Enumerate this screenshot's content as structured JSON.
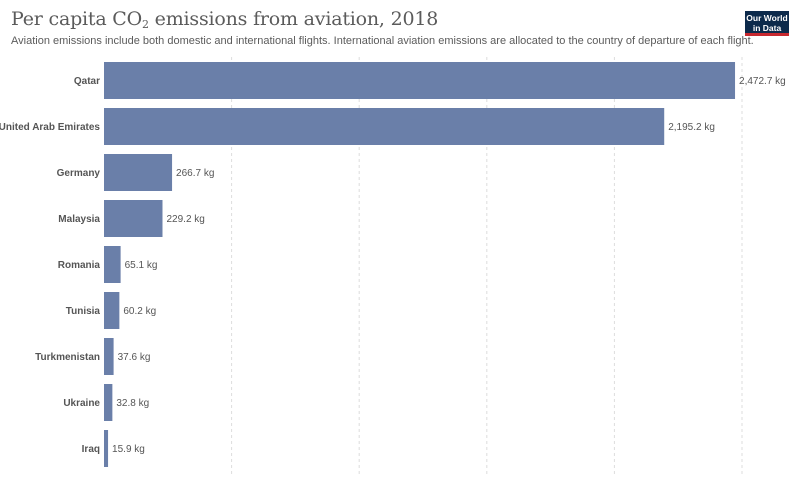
{
  "header": {
    "title_prefix": "Per capita CO",
    "title_sub": "2",
    "title_suffix": " emissions from aviation, 2018",
    "subtitle": "Aviation emissions include both domestic and international flights. International aviation emissions are allocated to the country of departure of each flight."
  },
  "logo": {
    "line1": "Our World",
    "line2": "in Data"
  },
  "colors": {
    "bar": "#6a7fa9",
    "logo_bg": "#0c2a4b",
    "logo_accent": "#c7282f"
  },
  "chart_data": {
    "type": "bar",
    "orientation": "horizontal",
    "categories": [
      "Qatar",
      "United Arab Emirates",
      "Germany",
      "Malaysia",
      "Romania",
      "Tunisia",
      "Turkmenistan",
      "Ukraine",
      "Iraq"
    ],
    "values": [
      2472.7,
      2195.2,
      266.7,
      229.2,
      65.1,
      60.2,
      37.6,
      32.8,
      15.9
    ],
    "value_labels": [
      "2,472.7 kg",
      "2,195.2 kg",
      "266.7 kg",
      "229.2 kg",
      "65.1 kg",
      "60.2 kg",
      "37.6 kg",
      "32.8 kg",
      "15.9 kg"
    ],
    "unit": "kg",
    "xlim": [
      0,
      2500
    ],
    "grid": true
  }
}
